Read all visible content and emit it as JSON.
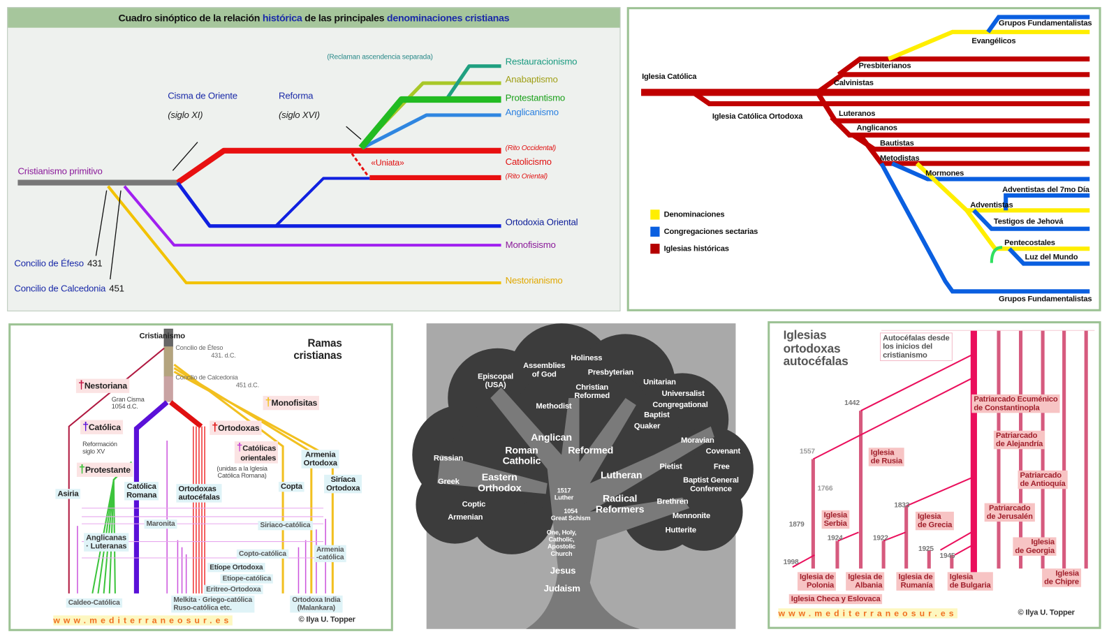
{
  "sinoptico": {
    "title_pre": "Cuadro sinóptico de la relación ",
    "title_hist": "histórica",
    "title_mid": " de las principales ",
    "title_denom": "denominaciones cristianas",
    "note": "(Reclaman ascendencia separada)",
    "restauracionismo": "Restauracionismo",
    "anabaptismo": "Anabaptismo",
    "protestantismo": "Protestantismo",
    "anglicanismo": "Anglicanismo",
    "cisma": "Cisma de Oriente",
    "cisma_siglo": "(siglo XI)",
    "reforma": "Reforma",
    "reforma_siglo": "(siglo XVI)",
    "rito_occidental": "(Rito Occidental)",
    "uniata": "«Uniata»",
    "catolicismo": "Catolicismo",
    "rito_oriental": "(Rito Oriental)",
    "cristianismo": "Cristianismo primitivo",
    "ortodoxia": "Ortodoxia Oriental",
    "monofisismo": "Monofisismo",
    "nestorianismo": "Nestorianismo",
    "efeso": "Concilio de Éfeso",
    "efeso_year": "431",
    "calcedonia": "Concilio de Calcedonia",
    "calcedonia_year": "451"
  },
  "protestant_tree": {
    "grupos_top": "Grupos Fundamentalistas",
    "evangelicos": "Evangélicos",
    "iglesia_catolica": "Iglesia Católica",
    "presbiterianos": "Presbiterianos",
    "calvinistas": "Calvinistas",
    "ortodoxa": "Iglesia Católica Ortodoxa",
    "luteranos": "Luteranos",
    "anglicanos": "Anglicanos",
    "bautistas": "Bautistas",
    "metodistas": "Metodistas",
    "mormones": "Mormones",
    "adventistas7": "Adventistas del 7mo Día",
    "adventistas": "Adventistas",
    "testigos": "Testigos de Jehová",
    "pentecostales": "Pentecostales",
    "luz": "Luz del Mundo",
    "grupos_bottom": "Grupos Fundamentalistas",
    "legend": [
      {
        "label": "Denominaciones",
        "color": "#ffee00"
      },
      {
        "label": "Congregaciones sectarias",
        "color": "#0a5fe0"
      },
      {
        "label": "Iglesias históricas",
        "color": "#b40000"
      }
    ]
  },
  "ramas": {
    "cristianismo": "Cristianismo",
    "efeso": "Concilio de Éfeso",
    "efeso_year": "431. d.C.",
    "title": "Ramas\ncristianas",
    "calcedonia": "Concilio de Calcedonia",
    "calcedonia_year": "451 d.C.",
    "nestoriana": "Nestoriana",
    "gran_cisma": "Gran Cisma\n1054 d.C.",
    "monofisitas": "Monofisitas",
    "catolica": "Católica",
    "ortodoxas": "Ortodoxas",
    "reformacion": "Reformación\nsiglo XV",
    "catolicas_orientales": "Católicas\norientales",
    "unidas": "(unidas a la Iglesia\nCatólica Romana)",
    "armenia_ortodoxa": "Armenia\nOrtodoxa",
    "protestante": "Protestante",
    "asiria": "Asiria",
    "catolica_romana": "Católica\nRomana",
    "ortodoxas_autocefalas": "Ortodoxas\nautocéfalas",
    "copta": "Copta",
    "siriaca_ortodoxa": "Siríaca\nOrtodoxa",
    "maronita": "Maronita",
    "siriaco_catolica": "Siriaco-católica",
    "anglicanas": "Anglicanas\n· Luteranas",
    "copto_catolica": "Copto-católica",
    "armenia_catolica": "Armenia\n-católica",
    "etiope_ortodoxa": "Etíope Ortodoxa",
    "etiope_catolica": "Etiope-católica",
    "eritreo": "Eritreo-Ortodoxa",
    "caldeo": "Caldeo-Católica",
    "melkita": "Melkita · Griego-católica\nRuso-católica etc.",
    "india": "Ortodoxa India\n(Malankara)",
    "footer_url": "www.mediterraneosur.es",
    "footer_copy": "© Ilya U. Topper",
    "cross": "†"
  },
  "tree": {
    "holiness": "Holiness",
    "assemblies": "Assemblies\nof God",
    "episcopal": "Episcopal\n(USA)",
    "presbyterian": "Presbyterian",
    "christian_reformed": "Christian\nReformed",
    "unitarian": "Unitarian",
    "universalist": "Universalist",
    "methodist": "Methodist",
    "congregational": "Congregational",
    "baptist": "Baptist",
    "quaker": "Quaker",
    "anglican": "Anglican",
    "roman_catholic": "Roman\nCatholic",
    "reformed": "Reformed",
    "moravian": "Moravian",
    "covenant": "Covenant",
    "russian": "Russian",
    "pietist": "Pietist",
    "free": "Free",
    "eastern_orthodox": "Eastern\nOrthodox",
    "lutheran": "Lutheran",
    "greek": "Greek",
    "bgc": "Baptist General\nConference",
    "luther": "1517\nLuther",
    "brethren": "Brethren",
    "radical": "Radical\nReformers",
    "coptic": "Coptic",
    "schism": "1054\nGreat Schism",
    "mennonite": "Mennonite",
    "armenian": "Armenian",
    "hutterite": "Hutterite",
    "church": "One, Holy,\nCatholic,\nApostolic\nChurch",
    "jesus": "Jesus",
    "judaism": "Judaism"
  },
  "autocefalas": {
    "title": "Iglesias\nortodoxas\nautocéfalas",
    "desde": "Autocéfalas desde\nlos inicios del\ncristianismo",
    "y1442": "1442",
    "y1557": "1557",
    "y1766": "1766",
    "y1879": "1879",
    "y1924": "1924",
    "y1922": "1922",
    "y1833": "1833",
    "y1925": "1925",
    "y1945": "1945",
    "y1998": "1998",
    "constantinopla": "Patriarcado Ecuménico\nde Constantinopla",
    "rusia": "Iglesia\nde Rusia",
    "alejandria": "Patriarcado\nde Alejandría",
    "antioquia": "Patriarcado\nde Antioquía",
    "jerusalen": "Patriarcado\nde Jerusalén",
    "serbia": "Iglesia\nSerbia",
    "grecia": "Iglesia\nde Grecia",
    "georgia": "Iglesia\nde Georgia",
    "chipre": "Iglesia\nde Chipre",
    "polonia": "Iglesia de\nPolonia",
    "albania": "Iglesia de\nAlbania",
    "rumania": "Iglesia de\nRumanía",
    "bulgaria": "Iglesia\nde Bulgaria",
    "checa": "Iglesia Checa y Eslovaca",
    "footer_url": "www.mediterraneosur.es",
    "footer_copy": "© Ilya U. Topper"
  }
}
